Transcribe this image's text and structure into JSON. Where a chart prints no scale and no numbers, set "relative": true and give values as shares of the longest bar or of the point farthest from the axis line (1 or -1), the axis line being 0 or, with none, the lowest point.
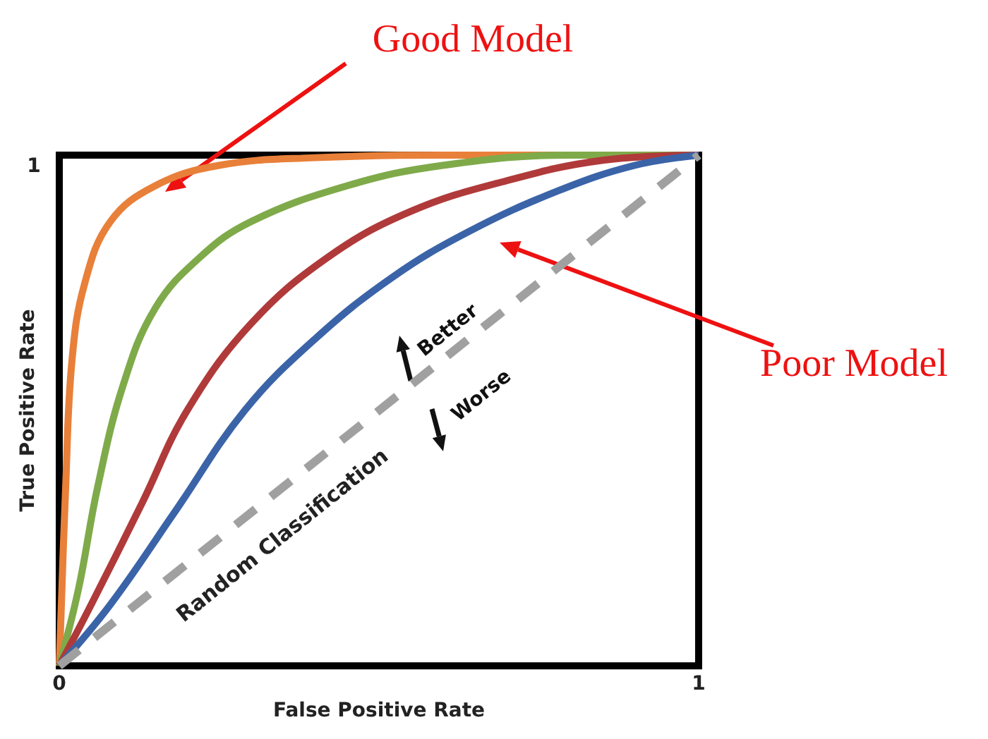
{
  "chart_data": {
    "type": "line",
    "xlabel": "False Positive Rate",
    "ylabel": "True Positive Rate",
    "xlim": [
      0,
      1
    ],
    "xticks": [
      0,
      1
    ],
    "relative": true,
    "grid": false,
    "legend": false,
    "marker": "none",
    "line_style": "solid",
    "series": [
      {
        "color": "#e8803a",
        "x": [
          0,
          0.01,
          0.02,
          0.04,
          0.08,
          0.15,
          0.25,
          0.4,
          0.6,
          1
        ],
        "values": [
          0,
          0.35,
          0.6,
          0.75,
          0.87,
          0.94,
          0.98,
          0.995,
          1,
          1
        ]
      },
      {
        "color": "#7faa4a",
        "x": [
          0,
          0.03,
          0.06,
          0.1,
          0.15,
          0.22,
          0.3,
          0.45,
          0.6,
          0.8,
          1
        ],
        "values": [
          0,
          0.15,
          0.35,
          0.55,
          0.7,
          0.8,
          0.87,
          0.94,
          0.98,
          1,
          1
        ]
      },
      {
        "color": "#b03a3a",
        "x": [
          0,
          0.05,
          0.13,
          0.2,
          0.3,
          0.42,
          0.55,
          0.7,
          0.85,
          1
        ],
        "values": [
          0,
          0.12,
          0.32,
          0.5,
          0.67,
          0.8,
          0.89,
          0.95,
          0.99,
          1
        ]
      },
      {
        "color": "#3b64a8",
        "x": [
          0,
          0.08,
          0.18,
          0.29,
          0.4,
          0.52,
          0.64,
          0.78,
          0.9,
          1
        ],
        "values": [
          0,
          0.12,
          0.3,
          0.5,
          0.64,
          0.76,
          0.85,
          0.93,
          0.98,
          1
        ]
      },
      {
        "name": "Random Classification",
        "color": "#a0a0a0",
        "line_style": "dashed",
        "x": [
          0,
          1
        ],
        "values": [
          0,
          1
        ]
      }
    ],
    "annotations": [
      "Good Model",
      "Poor Model",
      "Better",
      "Worse",
      "1"
    ]
  }
}
